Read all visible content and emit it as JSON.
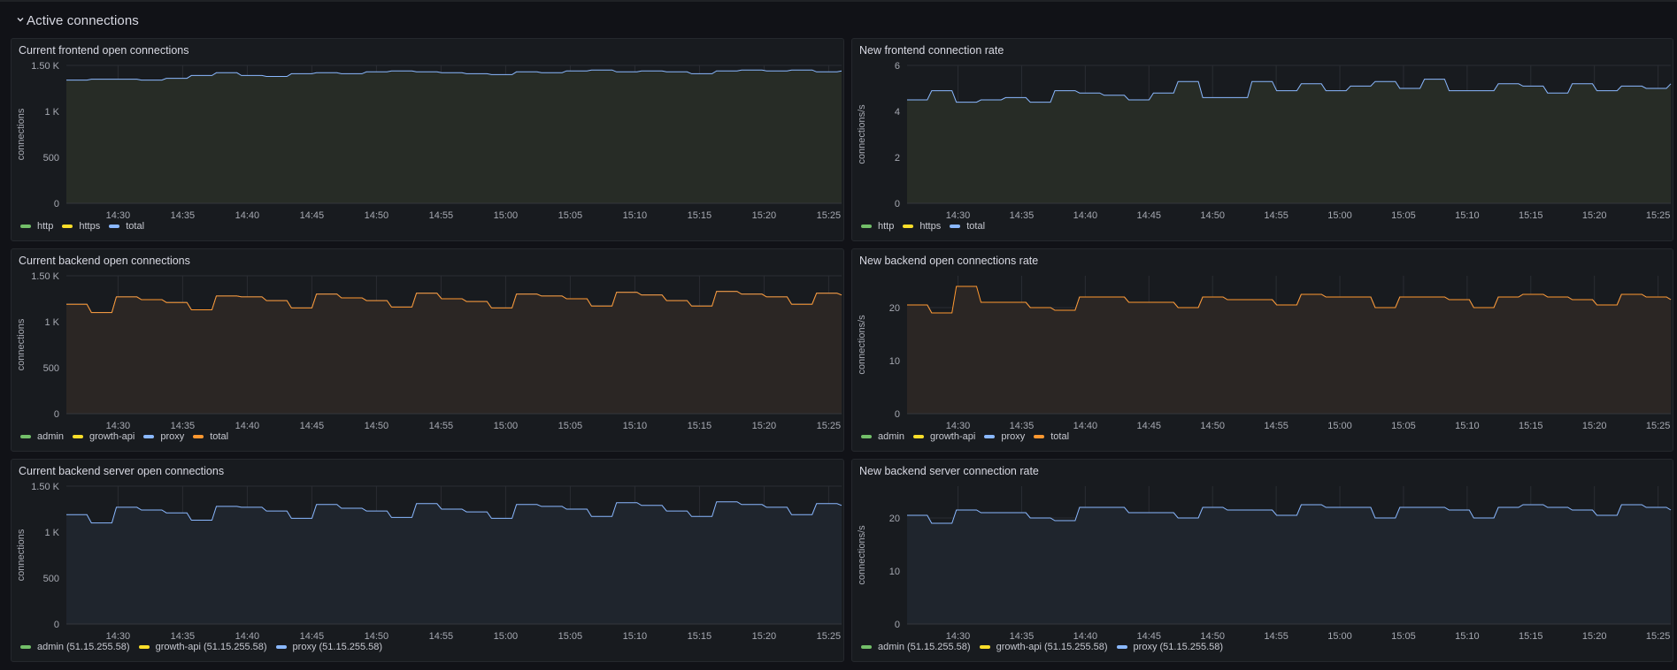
{
  "row": {
    "title": "Active connections",
    "chevron_icon": "chevron-down-icon"
  },
  "panels": [
    {
      "id": "frontend-open",
      "title": "Current frontend open connections",
      "ylabel": "connections",
      "fill": "#272c26",
      "yticks": [
        {
          "v": 0,
          "label": "0"
        },
        {
          "v": 500,
          "label": "500"
        },
        {
          "v": 1000,
          "label": "1 K"
        },
        {
          "v": 1500,
          "label": "1.50 K"
        }
      ],
      "ymax": 1500,
      "legend": [
        {
          "label": "http",
          "color": "#73bf69"
        },
        {
          "label": "https",
          "color": "#fade2a"
        },
        {
          "label": "total",
          "color": "#8ab8ff"
        }
      ]
    },
    {
      "id": "frontend-rate",
      "title": "New frontend connection rate",
      "ylabel": "connections/s",
      "fill": "#272c26",
      "yticks": [
        {
          "v": 0,
          "label": "0"
        },
        {
          "v": 2,
          "label": "2"
        },
        {
          "v": 4,
          "label": "4"
        },
        {
          "v": 6,
          "label": "6"
        }
      ],
      "ymax": 6,
      "legend": [
        {
          "label": "http",
          "color": "#73bf69"
        },
        {
          "label": "https",
          "color": "#fade2a"
        },
        {
          "label": "total",
          "color": "#8ab8ff"
        }
      ]
    },
    {
      "id": "backend-open",
      "title": "Current backend open connections",
      "ylabel": "connections",
      "fill": "#2b2624",
      "yticks": [
        {
          "v": 0,
          "label": "0"
        },
        {
          "v": 500,
          "label": "500"
        },
        {
          "v": 1000,
          "label": "1 K"
        },
        {
          "v": 1500,
          "label": "1.50 K"
        }
      ],
      "ymax": 1500,
      "legend": [
        {
          "label": "admin",
          "color": "#73bf69"
        },
        {
          "label": "growth-api",
          "color": "#fade2a"
        },
        {
          "label": "proxy",
          "color": "#8ab8ff"
        },
        {
          "label": "total",
          "color": "#ff9830"
        }
      ]
    },
    {
      "id": "backend-rate",
      "title": "New backend open connections rate",
      "ylabel": "connections/s",
      "fill": "#2b2624",
      "yticks": [
        {
          "v": 0,
          "label": "0"
        },
        {
          "v": 10,
          "label": "10"
        },
        {
          "v": 20,
          "label": "20"
        }
      ],
      "ymax": 26,
      "legend": [
        {
          "label": "admin",
          "color": "#73bf69"
        },
        {
          "label": "growth-api",
          "color": "#fade2a"
        },
        {
          "label": "proxy",
          "color": "#8ab8ff"
        },
        {
          "label": "total",
          "color": "#ff9830"
        }
      ]
    },
    {
      "id": "server-open",
      "title": "Current backend server open connections",
      "ylabel": "connections",
      "fill": "#1f252d",
      "yticks": [
        {
          "v": 0,
          "label": "0"
        },
        {
          "v": 500,
          "label": "500"
        },
        {
          "v": 1000,
          "label": "1 K"
        },
        {
          "v": 1500,
          "label": "1.50 K"
        }
      ],
      "ymax": 1500,
      "legend": [
        {
          "label": "admin (51.15.255.58)",
          "color": "#73bf69"
        },
        {
          "label": "growth-api (51.15.255.58)",
          "color": "#fade2a"
        },
        {
          "label": "proxy (51.15.255.58)",
          "color": "#8ab8ff"
        }
      ]
    },
    {
      "id": "server-rate",
      "title": "New backend server connection rate",
      "ylabel": "connections/s",
      "fill": "#1f252d",
      "yticks": [
        {
          "v": 0,
          "label": "0"
        },
        {
          "v": 10,
          "label": "10"
        },
        {
          "v": 20,
          "label": "20"
        }
      ],
      "ymax": 26,
      "legend": [
        {
          "label": "admin (51.15.255.58)",
          "color": "#73bf69"
        },
        {
          "label": "growth-api (51.15.255.58)",
          "color": "#fade2a"
        },
        {
          "label": "proxy (51.15.255.58)",
          "color": "#8ab8ff"
        }
      ]
    }
  ],
  "xticks": [
    "14:30",
    "14:35",
    "14:40",
    "14:45",
    "14:50",
    "14:55",
    "15:00",
    "15:05",
    "15:10",
    "15:15",
    "15:20",
    "15:25"
  ],
  "chart_data": [
    {
      "type": "line",
      "title": "Current frontend open connections",
      "ylabel": "connections",
      "x_range": [
        "14:26",
        "15:26"
      ],
      "ylim": [
        0,
        1500
      ],
      "series": [
        {
          "name": "total",
          "values": [
            1340,
            1350,
            1350,
            1340,
            1360,
            1390,
            1420,
            1390,
            1380,
            1410,
            1420,
            1410,
            1430,
            1440,
            1430,
            1420,
            1410,
            1400,
            1430,
            1420,
            1440,
            1450,
            1430,
            1440,
            1430,
            1410,
            1440,
            1450,
            1440,
            1450,
            1430,
            1440
          ]
        },
        {
          "name": "http",
          "values": [
            2,
            2,
            2,
            2,
            2,
            2,
            2,
            2,
            2,
            2,
            2,
            2,
            2,
            2,
            2,
            2,
            2,
            2,
            2,
            2,
            2,
            2,
            2,
            2,
            2,
            2,
            2,
            2,
            2,
            2,
            2,
            2
          ]
        },
        {
          "name": "https",
          "values": [
            0,
            0,
            0,
            0,
            0,
            0,
            0,
            0,
            0,
            0,
            0,
            0,
            0,
            0,
            0,
            0,
            0,
            0,
            0,
            0,
            0,
            0,
            0,
            0,
            0,
            0,
            0,
            0,
            0,
            0,
            0,
            0
          ]
        }
      ]
    },
    {
      "type": "line",
      "title": "New frontend connection rate",
      "ylabel": "connections/s",
      "x_range": [
        "14:26",
        "15:26"
      ],
      "ylim": [
        0,
        6
      ],
      "series": [
        {
          "name": "total",
          "values": [
            4.5,
            4.9,
            4.4,
            4.5,
            4.6,
            4.4,
            4.9,
            4.8,
            4.7,
            4.5,
            4.8,
            5.3,
            4.6,
            4.6,
            5.3,
            4.9,
            5.2,
            4.9,
            5.1,
            5.3,
            5.0,
            5.4,
            4.9,
            4.9,
            5.2,
            5.1,
            4.8,
            5.2,
            4.9,
            5.1,
            5.0,
            5.2
          ]
        },
        {
          "name": "http",
          "values": [
            0,
            0,
            0,
            0,
            0,
            0,
            0,
            0,
            0,
            0,
            0,
            0.05,
            0,
            0,
            0,
            0,
            0,
            0,
            0,
            0,
            0,
            0,
            0,
            0,
            0,
            0,
            0,
            0,
            0,
            0,
            0,
            0
          ]
        },
        {
          "name": "https",
          "values": [
            0,
            0,
            0,
            0,
            0,
            0,
            0,
            0,
            0,
            0,
            0,
            0,
            0,
            0,
            0,
            0,
            0,
            0,
            0,
            0,
            0,
            0,
            0,
            0,
            0,
            0,
            0,
            0,
            0,
            0,
            0,
            0
          ]
        }
      ]
    },
    {
      "type": "line",
      "title": "Current backend open connections",
      "ylabel": "connections",
      "x_range": [
        "14:26",
        "15:26"
      ],
      "ylim": [
        0,
        1500
      ],
      "series": [
        {
          "name": "total",
          "values": [
            1190,
            1100,
            1270,
            1240,
            1210,
            1130,
            1280,
            1270,
            1230,
            1150,
            1300,
            1260,
            1230,
            1160,
            1310,
            1250,
            1220,
            1150,
            1300,
            1280,
            1250,
            1170,
            1320,
            1290,
            1230,
            1170,
            1330,
            1300,
            1270,
            1190,
            1310,
            1290
          ]
        },
        {
          "name": "proxy",
          "values": [
            1190,
            1100,
            1270,
            1240,
            1210,
            1130,
            1280,
            1270,
            1230,
            1150,
            1300,
            1260,
            1230,
            1160,
            1310,
            1250,
            1220,
            1150,
            1300,
            1280,
            1250,
            1170,
            1320,
            1290,
            1230,
            1170,
            1330,
            1300,
            1270,
            1190,
            1310,
            1290
          ]
        },
        {
          "name": "admin",
          "values": [
            0,
            0,
            0,
            0,
            0,
            0,
            0,
            0,
            0,
            0,
            0,
            0,
            0,
            0,
            0,
            0,
            0,
            0,
            0,
            0,
            0,
            0,
            0,
            0,
            0,
            0,
            0,
            0,
            0,
            0,
            0,
            0
          ]
        },
        {
          "name": "growth-api",
          "values": [
            1,
            1,
            1,
            1,
            1,
            1,
            1,
            1,
            1,
            1,
            1,
            1,
            1,
            1,
            1,
            1,
            1,
            1,
            1,
            1,
            1,
            1,
            1,
            1,
            1,
            1,
            1,
            1,
            1,
            1,
            1,
            1
          ]
        }
      ]
    },
    {
      "type": "line",
      "title": "New backend open connections rate",
      "ylabel": "connections/s",
      "x_range": [
        "14:26",
        "15:26"
      ],
      "ylim": [
        0,
        26
      ],
      "series": [
        {
          "name": "total",
          "values": [
            20.5,
            19,
            24,
            21,
            21,
            20,
            19.5,
            22,
            22,
            21,
            21,
            20,
            22,
            21.5,
            21.5,
            20.5,
            22.5,
            22,
            22,
            20,
            22,
            22,
            21.5,
            20,
            22,
            22.5,
            22,
            21.5,
            20.5,
            22.5,
            22,
            21.5
          ]
        },
        {
          "name": "proxy",
          "values": [
            20.5,
            19,
            21.5,
            21,
            21,
            20,
            19.5,
            22,
            22,
            21,
            21,
            20,
            22,
            21.5,
            21.5,
            20.5,
            22.5,
            22,
            22,
            20,
            22,
            22,
            21.5,
            20,
            22,
            22.5,
            22,
            21.5,
            20.5,
            22.5,
            22,
            21.5
          ]
        },
        {
          "name": "growth-api",
          "values": [
            0.5,
            0,
            1.8,
            0,
            0,
            0,
            0,
            0,
            0,
            0,
            0,
            0,
            0,
            0,
            0,
            0,
            0,
            0,
            0,
            0,
            0,
            0,
            0,
            0,
            0,
            0,
            0,
            0,
            0,
            0,
            0,
            0
          ]
        },
        {
          "name": "admin",
          "values": [
            0,
            0,
            0,
            0,
            0,
            0,
            0,
            0,
            0,
            0,
            0,
            0,
            0,
            0,
            0,
            0,
            0,
            0,
            0,
            0,
            0,
            0,
            0,
            0,
            0,
            0,
            0,
            0,
            0,
            0,
            0,
            0
          ]
        }
      ]
    },
    {
      "type": "line",
      "title": "Current backend server open connections",
      "ylabel": "connections",
      "x_range": [
        "14:26",
        "15:26"
      ],
      "ylim": [
        0,
        1500
      ],
      "series": [
        {
          "name": "proxy (51.15.255.58)",
          "values": [
            1190,
            1100,
            1270,
            1240,
            1210,
            1130,
            1280,
            1270,
            1230,
            1150,
            1300,
            1260,
            1230,
            1160,
            1310,
            1250,
            1220,
            1150,
            1300,
            1280,
            1250,
            1170,
            1320,
            1290,
            1230,
            1170,
            1330,
            1300,
            1270,
            1190,
            1310,
            1290
          ]
        },
        {
          "name": "admin (51.15.255.58)",
          "values": [
            0,
            0,
            0,
            0,
            0,
            0,
            0,
            0,
            0,
            0,
            0,
            0,
            0,
            0,
            0,
            0,
            0,
            0,
            0,
            0,
            0,
            0,
            0,
            0,
            0,
            0,
            0,
            0,
            0,
            0,
            0,
            0
          ]
        },
        {
          "name": "growth-api (51.15.255.58)",
          "values": [
            1,
            1,
            1,
            1,
            1,
            1,
            1,
            1,
            1,
            1,
            1,
            1,
            1,
            1,
            1,
            1,
            1,
            1,
            1,
            1,
            1,
            1,
            1,
            1,
            1,
            1,
            1,
            1,
            1,
            1,
            1,
            1
          ]
        }
      ]
    },
    {
      "type": "line",
      "title": "New backend server connection rate",
      "ylabel": "connections/s",
      "x_range": [
        "14:26",
        "15:26"
      ],
      "ylim": [
        0,
        26
      ],
      "series": [
        {
          "name": "proxy (51.15.255.58)",
          "values": [
            20.5,
            19,
            21.5,
            21,
            21,
            20,
            19.5,
            22,
            22,
            21,
            21,
            20,
            22,
            21.5,
            21.5,
            20.5,
            22.5,
            22,
            22,
            20,
            22,
            22,
            21.5,
            20,
            22,
            22.5,
            22,
            21.5,
            20.5,
            22.5,
            22,
            21.5
          ]
        },
        {
          "name": "growth-api (51.15.255.58)",
          "values": [
            0.5,
            0,
            1.8,
            0,
            0,
            0,
            0,
            0,
            0,
            0,
            0,
            0,
            0,
            0,
            0,
            0,
            0,
            0,
            0,
            0,
            0,
            0,
            0,
            0,
            0,
            0,
            0,
            0,
            0,
            0,
            0,
            0
          ]
        },
        {
          "name": "admin (51.15.255.58)",
          "values": [
            0,
            0,
            0,
            0,
            0,
            0,
            0,
            0,
            0,
            0,
            0,
            0,
            0,
            0,
            0,
            0,
            0,
            0,
            0,
            0,
            0,
            0,
            0,
            0,
            0,
            0,
            0,
            0,
            0,
            0,
            0,
            0
          ]
        }
      ]
    }
  ]
}
